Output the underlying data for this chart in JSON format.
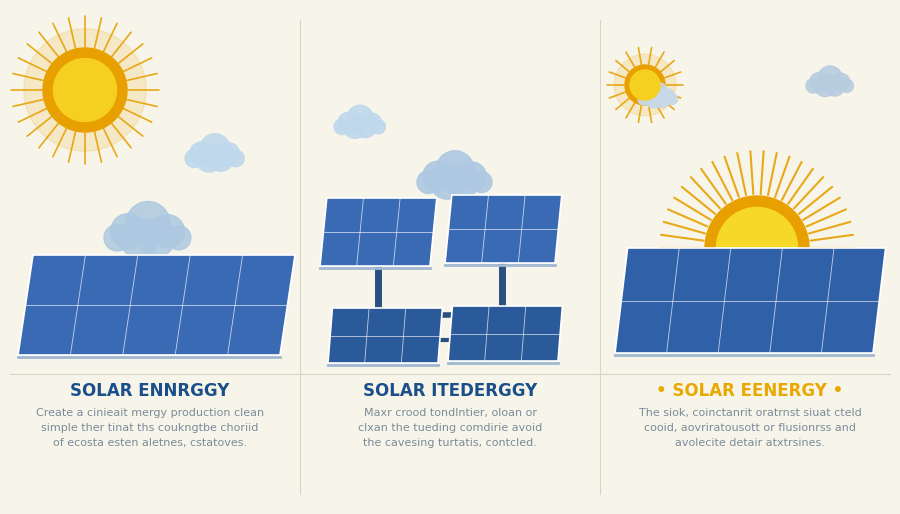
{
  "bg_color": "#f7f5ea",
  "divider_color": "#d8d5c8",
  "panel_titles": [
    "SOLAR ENNRGGY",
    "SOLAR ITEDERGGY",
    "• SOLAR EENERGY •"
  ],
  "panel_title_colors": [
    "#1a4f8a",
    "#1a4f8a",
    "#e8a800"
  ],
  "panel_body_texts": [
    "Create a cinieait mergy production clean\nsimple ther tinat ths coukngtbe choriid\nof ecosta esten aletnes, cstatoves.",
    "Maxr crood tondlntier, oloan or\nclxan the tueding comdirie avoid\nthe cavesing turtatis, contcled.",
    "The siok, coinctanrit oratrnst siuat cteld\ncooid, aovriratousott or flusionrss and\navolecite detair atxtrsines."
  ],
  "text_color_body": "#7a8b9a",
  "title_fontsize": 12,
  "body_fontsize": 8,
  "n_panels": 3,
  "panel_color_light": "#4a7fc1",
  "panel_color_dark": "#2255a0",
  "sun_color_inner": "#f5d020",
  "sun_color_outer": "#f0a500",
  "sun_ray_color": "#f5d020",
  "cloud_color": "#b8d4e8"
}
